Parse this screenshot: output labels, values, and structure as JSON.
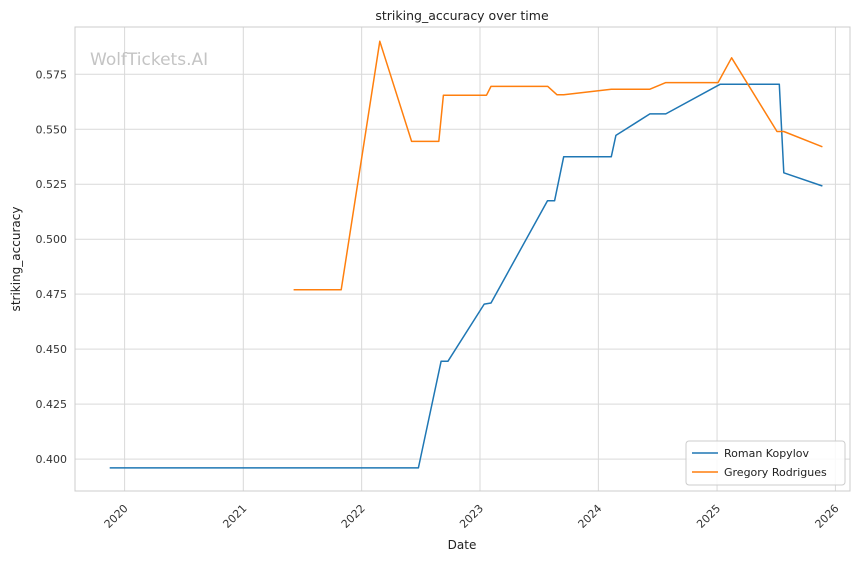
{
  "chart_data": {
    "type": "line",
    "title": "striking_accuracy over time",
    "xlabel": "Date",
    "ylabel": "striking_accuracy",
    "watermark": "WolfTickets.AI",
    "x_ticks": [
      "2020",
      "2021",
      "2022",
      "2023",
      "2024",
      "2025",
      "2026"
    ],
    "y_ticks": [
      "0.400",
      "0.425",
      "0.450",
      "0.475",
      "0.500",
      "0.525",
      "0.550",
      "0.575"
    ],
    "xlim": [
      "2019-08-01",
      "2026-02-15"
    ],
    "ylim": [
      0.3855,
      0.5965
    ],
    "grid": true,
    "legend_position": "lower-right",
    "series": [
      {
        "name": "Roman Kopylov",
        "color": "#1f77b4",
        "points": [
          [
            "2019-11-16",
            0.396
          ],
          [
            "2022-06-25",
            0.396
          ],
          [
            "2022-09-03",
            0.4445
          ],
          [
            "2022-09-24",
            0.4445
          ],
          [
            "2023-01-14",
            0.4705
          ],
          [
            "2023-02-04",
            0.471
          ],
          [
            "2023-07-28",
            0.5175
          ],
          [
            "2023-08-19",
            0.5175
          ],
          [
            "2023-09-16",
            0.5375
          ],
          [
            "2024-02-10",
            0.5375
          ],
          [
            "2024-02-24",
            0.5472
          ],
          [
            "2024-06-08",
            0.557
          ],
          [
            "2024-07-27",
            0.557
          ],
          [
            "2025-01-11",
            0.5705
          ],
          [
            "2025-07-12",
            0.5705
          ],
          [
            "2025-07-26",
            0.5302
          ],
          [
            "2025-11-22",
            0.5242
          ]
        ]
      },
      {
        "name": "Gregory Rodrigues",
        "color": "#ff7f0e",
        "points": [
          [
            "2021-06-05",
            0.477
          ],
          [
            "2021-10-30",
            0.477
          ],
          [
            "2022-02-26",
            0.59
          ],
          [
            "2022-06-04",
            0.5445
          ],
          [
            "2022-08-27",
            0.5445
          ],
          [
            "2022-09-10",
            0.5655
          ],
          [
            "2023-01-21",
            0.5655
          ],
          [
            "2023-02-04",
            0.5695
          ],
          [
            "2023-07-29",
            0.5695
          ],
          [
            "2023-08-26",
            0.5657
          ],
          [
            "2023-09-16",
            0.5657
          ],
          [
            "2024-02-10",
            0.5682
          ],
          [
            "2024-06-08",
            0.5682
          ],
          [
            "2024-07-27",
            0.5712
          ],
          [
            "2025-01-04",
            0.5712
          ],
          [
            "2025-02-15",
            0.5825
          ],
          [
            "2025-07-05",
            0.549
          ],
          [
            "2025-07-26",
            0.549
          ],
          [
            "2025-11-22",
            0.542
          ]
        ]
      }
    ]
  }
}
